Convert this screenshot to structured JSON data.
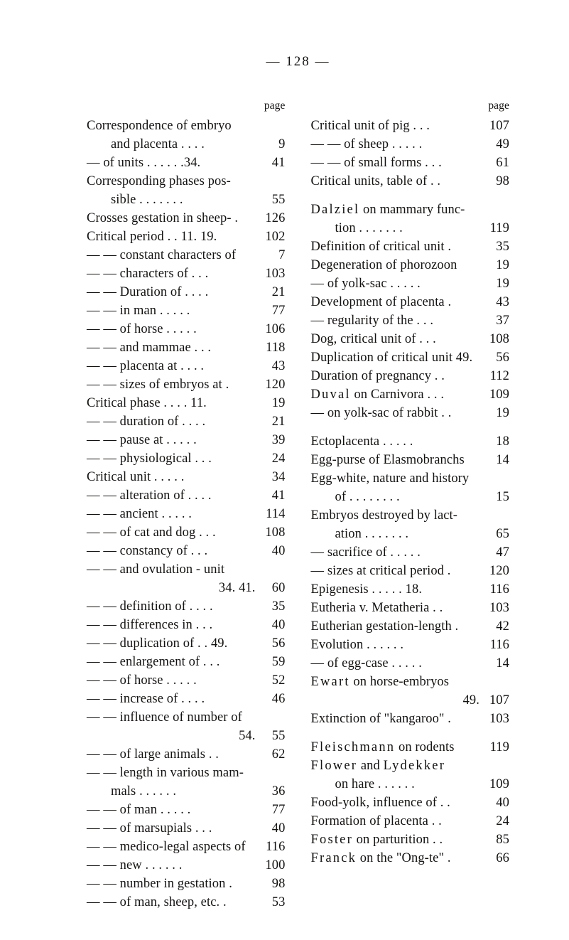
{
  "page_number_line": "—   128   —",
  "col_page_label": "page",
  "left": [
    {
      "t": "Correspondence of embryo",
      "p": ""
    },
    {
      "t": "and placenta . . . .",
      "p": "9",
      "cont": 2
    },
    {
      "t": "— of units . . . . . .34.",
      "p": "41"
    },
    {
      "t": "Corresponding phases pos-",
      "p": ""
    },
    {
      "t": "sible . . . . . . .",
      "p": "55",
      "cont": 2
    },
    {
      "t": "Crosses gestation in sheep- .",
      "p": "126"
    },
    {
      "t": "Critical period . . 11. 19.",
      "p": "102"
    },
    {
      "t": "— — constant characters of",
      "p": "7"
    },
    {
      "t": "— — characters of . . .",
      "p": "103"
    },
    {
      "t": "— — Duration of . . . .",
      "p": "21"
    },
    {
      "t": "— — in man . . . . .",
      "p": "77"
    },
    {
      "t": "— — of horse . . . . .",
      "p": "106"
    },
    {
      "t": "— — and mammae . . .",
      "p": "118"
    },
    {
      "t": "— — placenta at . . . .",
      "p": "43"
    },
    {
      "t": "— — sizes of embryos at .",
      "p": "120"
    },
    {
      "t": "Critical phase . . . . 11.",
      "p": "19"
    },
    {
      "t": "— — duration of . . . .",
      "p": "21"
    },
    {
      "t": "— — pause at . . . . .",
      "p": "39"
    },
    {
      "t": "— — physiological . . .",
      "p": "24"
    },
    {
      "t": "Critical unit . . . . .",
      "p": "34"
    },
    {
      "t": "— — alteration of . . . .",
      "p": "41"
    },
    {
      "t": "— — ancient . . . . .",
      "p": "114"
    },
    {
      "t": "— — of cat and dog . . .",
      "p": "108"
    },
    {
      "t": "— — constancy of . . .",
      "p": "40"
    },
    {
      "t": "— — and ovulation - unit",
      "p": ""
    },
    {
      "t": "34. 41.",
      "p": "60",
      "align": "right"
    },
    {
      "t": "— — definition of . . . .",
      "p": "35"
    },
    {
      "t": "— — differences in . . .",
      "p": "40"
    },
    {
      "t": "— — duplication of . . 49.",
      "p": "56"
    },
    {
      "t": "— — enlargement of . . .",
      "p": "59"
    },
    {
      "t": "— — of horse . . . . .",
      "p": "52"
    },
    {
      "t": "— — increase of . . . .",
      "p": "46"
    },
    {
      "t": "— — influence of number of",
      "p": ""
    },
    {
      "t": "54.",
      "p": "55",
      "align": "right"
    },
    {
      "t": "— — of large animals . .",
      "p": "62"
    },
    {
      "t": "— — length in various mam-",
      "p": ""
    },
    {
      "t": "mals . . . . . .",
      "p": "36",
      "cont": 2
    },
    {
      "t": "— — of man . . . . .",
      "p": "77"
    },
    {
      "t": "— — of marsupials . . .",
      "p": "40"
    },
    {
      "t": "— — medico-legal aspects of",
      "p": "116"
    },
    {
      "t": "— — new . . . . . .",
      "p": "100"
    },
    {
      "t": "— — number in gestation .",
      "p": "98"
    },
    {
      "t": "— — of man, sheep, etc. .",
      "p": "53"
    }
  ],
  "right": [
    {
      "t": "Critical unit of pig . . .",
      "p": "107"
    },
    {
      "t": "— — of sheep . . . . .",
      "p": "49"
    },
    {
      "t": "— — of small forms . . .",
      "p": "61"
    },
    {
      "t": "Critical units, table of . .",
      "p": "98"
    },
    {
      "gap": true
    },
    {
      "html": "<span class='spaced'>Dalziel</span> on mammary func-",
      "p": ""
    },
    {
      "t": "tion . . . . . . .",
      "p": "119",
      "cont": 2
    },
    {
      "t": "Definition of critical unit .",
      "p": "35"
    },
    {
      "t": "Degeneration of phorozoon",
      "p": "19"
    },
    {
      "t": "— of yolk-sac . . . . .",
      "p": "19"
    },
    {
      "t": "Development of placenta .",
      "p": "43"
    },
    {
      "t": "— regularity of the . . .",
      "p": "37"
    },
    {
      "t": "Dog, critical unit of . . .",
      "p": "108"
    },
    {
      "t": "Duplication of critical unit 49.",
      "p": "56"
    },
    {
      "t": "Duration of pregnancy . .",
      "p": "112"
    },
    {
      "html": "<span class='spaced'>Duval</span> on Carnivora . . .",
      "p": "109"
    },
    {
      "t": "— on yolk-sac of rabbit . .",
      "p": "19"
    },
    {
      "gap": true
    },
    {
      "t": "Ectoplacenta . . . . .",
      "p": "18"
    },
    {
      "t": "Egg-purse of Elasmobranchs",
      "p": "14"
    },
    {
      "t": "Egg-white, nature and history",
      "p": ""
    },
    {
      "t": "of . . . . . . . .",
      "p": "15",
      "cont": 2
    },
    {
      "t": "Embryos destroyed by lact-",
      "p": ""
    },
    {
      "t": "ation . . . . . . .",
      "p": "65",
      "cont": 2
    },
    {
      "t": "— sacrifice of . . . . .",
      "p": "47"
    },
    {
      "t": "— sizes at critical period .",
      "p": "120"
    },
    {
      "t": "Epigenesis . . . . . 18.",
      "p": "116"
    },
    {
      "t": "Eutheria v. Metatheria . .",
      "p": "103"
    },
    {
      "t": "Eutherian gestation-length .",
      "p": "42"
    },
    {
      "t": "Evolution . . . . . .",
      "p": "116"
    },
    {
      "t": "— of egg-case . . . . .",
      "p": "14"
    },
    {
      "html": "<span class='spaced'>Ewart</span> on horse-embryos",
      "p": ""
    },
    {
      "t": "49.",
      "p": "107",
      "align": "right"
    },
    {
      "t": "Extinction of \"kangaroo\" .",
      "p": "103"
    },
    {
      "gap": true
    },
    {
      "html": "<span class='spaced'>Fleischmann</span> on rodents",
      "p": "119"
    },
    {
      "html": "<span class='spaced'>Flower</span> and <span class='spaced'>Lydekker</span>",
      "p": ""
    },
    {
      "t": "on hare . . . . . .",
      "p": "109",
      "cont": 2
    },
    {
      "t": "Food-yolk, influence of . .",
      "p": "40"
    },
    {
      "t": "Formation of placenta . .",
      "p": "24"
    },
    {
      "html": "<span class='spaced'>Foster</span> on parturition . .",
      "p": "85"
    },
    {
      "html": "<span class='spaced'>Franck</span> on the \"Ong-te\" .",
      "p": "66"
    }
  ]
}
